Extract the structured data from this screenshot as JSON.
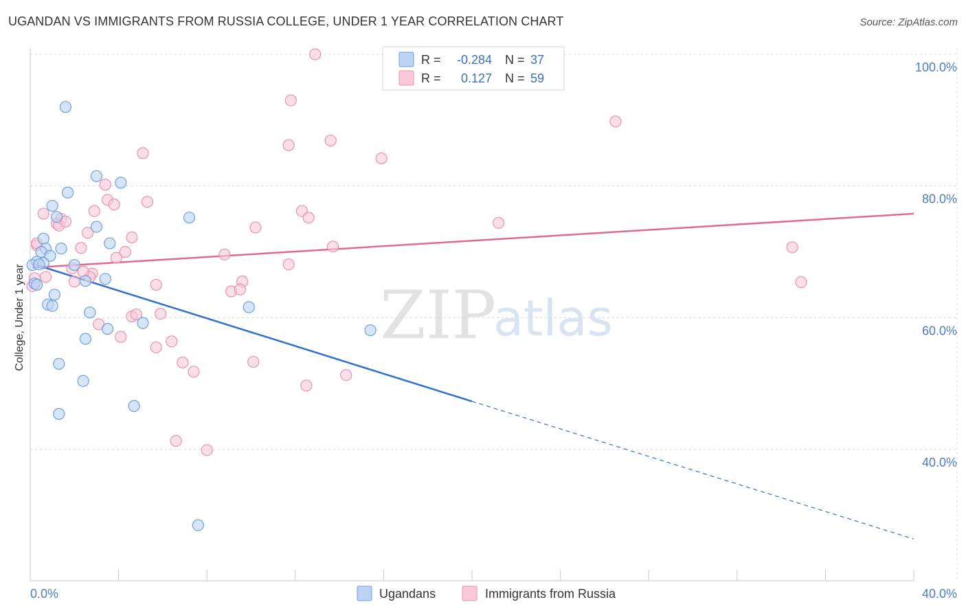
{
  "header": {
    "title": "UGANDAN VS IMMIGRANTS FROM RUSSIA COLLEGE, UNDER 1 YEAR CORRELATION CHART",
    "source": "Source: ZipAtlas.com"
  },
  "watermark": {
    "part1": "ZIP",
    "part2": "atlas"
  },
  "legend": {
    "rows": [
      {
        "r_label": "R =",
        "r_value": "-0.284",
        "n_label": "N =",
        "n_value": "37"
      },
      {
        "r_label": "R =",
        "r_value": "0.127",
        "n_label": "N =",
        "n_value": "59"
      }
    ]
  },
  "bottom_legend": [
    "Ugandans",
    "Immigrants from Russia"
  ],
  "chart_data": {
    "type": "scatter",
    "title": "UGANDAN VS IMMIGRANTS FROM RUSSIA COLLEGE, UNDER 1 YEAR CORRELATION CHART",
    "xlabel": "",
    "ylabel": "College, Under 1 year",
    "xlim": [
      0,
      40
    ],
    "ylim": [
      20,
      102
    ],
    "x_tick_labels": [
      "0.0%",
      "40.0%"
    ],
    "y_ticks": [
      40,
      60,
      80,
      100
    ],
    "y_tick_labels": [
      "40.0%",
      "60.0%",
      "80.0%",
      "100.0%"
    ],
    "colors": {
      "ugandans_fill": "#bcd3f3",
      "ugandans_stroke": "#6e9fdc",
      "ugandans_line": "#2f6fce",
      "russia_fill": "#f9c9d8",
      "russia_stroke": "#e892ae",
      "russia_line": "#e0698f",
      "grid": "#d8d8d8",
      "tick_text": "#4a7cc9"
    },
    "series": [
      {
        "name": "Ugandans",
        "R": -0.284,
        "N": 37,
        "trend": {
          "x0": 0.1,
          "y0": 68.2,
          "x1": 20.0,
          "y1": 47.3,
          "dash_to_x": 40.0,
          "dash_to_y": 26.4
        },
        "points": [
          [
            1.6,
            92.0
          ],
          [
            3.0,
            81.5
          ],
          [
            4.1,
            80.5
          ],
          [
            1.7,
            79.0
          ],
          [
            1.0,
            77.0
          ],
          [
            7.2,
            75.2
          ],
          [
            1.2,
            75.3
          ],
          [
            3.0,
            73.8
          ],
          [
            0.6,
            72.0
          ],
          [
            3.6,
            71.3
          ],
          [
            0.7,
            70.5
          ],
          [
            1.4,
            70.5
          ],
          [
            0.5,
            70.0
          ],
          [
            0.9,
            69.4
          ],
          [
            0.3,
            68.5
          ],
          [
            0.1,
            68.0
          ],
          [
            0.6,
            68.3
          ],
          [
            2.0,
            68.0
          ],
          [
            2.5,
            65.6
          ],
          [
            3.4,
            65.9
          ],
          [
            0.2,
            65.2
          ],
          [
            0.3,
            65.0
          ],
          [
            1.1,
            63.5
          ],
          [
            0.8,
            62.0
          ],
          [
            1.0,
            61.8
          ],
          [
            9.9,
            61.6
          ],
          [
            2.7,
            60.8
          ],
          [
            5.1,
            59.2
          ],
          [
            3.5,
            58.3
          ],
          [
            15.4,
            58.1
          ],
          [
            2.5,
            56.8
          ],
          [
            1.3,
            53.0
          ],
          [
            2.4,
            50.4
          ],
          [
            4.7,
            46.6
          ],
          [
            1.3,
            45.4
          ],
          [
            7.6,
            28.5
          ],
          [
            0.4,
            68.1
          ]
        ]
      },
      {
        "name": "Immigrants from Russia",
        "R": 0.127,
        "N": 59,
        "trend": {
          "x0": 0.1,
          "y0": 67.6,
          "x1": 40.0,
          "y1": 75.8
        },
        "points": [
          [
            12.9,
            100.0
          ],
          [
            11.8,
            93.0
          ],
          [
            26.5,
            89.8
          ],
          [
            13.6,
            86.9
          ],
          [
            11.7,
            86.2
          ],
          [
            5.1,
            85.0
          ],
          [
            15.9,
            84.2
          ],
          [
            3.4,
            80.2
          ],
          [
            3.5,
            77.9
          ],
          [
            5.3,
            77.6
          ],
          [
            2.9,
            76.2
          ],
          [
            3.8,
            77.2
          ],
          [
            0.6,
            75.8
          ],
          [
            12.3,
            76.2
          ],
          [
            12.6,
            75.2
          ],
          [
            1.4,
            75.0
          ],
          [
            1.2,
            74.3
          ],
          [
            1.3,
            74.0
          ],
          [
            21.2,
            74.4
          ],
          [
            10.2,
            73.7
          ],
          [
            2.6,
            72.9
          ],
          [
            4.6,
            72.2
          ],
          [
            0.3,
            71.0
          ],
          [
            13.7,
            70.8
          ],
          [
            34.5,
            70.7
          ],
          [
            2.3,
            70.6
          ],
          [
            4.3,
            70.0
          ],
          [
            8.8,
            69.6
          ],
          [
            3.9,
            69.1
          ],
          [
            11.7,
            68.1
          ],
          [
            1.9,
            67.5
          ],
          [
            2.8,
            66.7
          ],
          [
            2.7,
            66.2
          ],
          [
            0.7,
            66.2
          ],
          [
            2.0,
            65.5
          ],
          [
            9.6,
            65.5
          ],
          [
            5.7,
            65.0
          ],
          [
            34.9,
            65.4
          ],
          [
            0.1,
            64.8
          ],
          [
            9.1,
            64.0
          ],
          [
            9.5,
            64.3
          ],
          [
            4.6,
            60.2
          ],
          [
            4.8,
            60.5
          ],
          [
            5.9,
            60.6
          ],
          [
            3.1,
            59.0
          ],
          [
            4.1,
            57.1
          ],
          [
            6.4,
            56.4
          ],
          [
            5.7,
            55.5
          ],
          [
            10.1,
            53.3
          ],
          [
            6.9,
            53.2
          ],
          [
            7.4,
            51.8
          ],
          [
            14.3,
            51.3
          ],
          [
            12.5,
            49.7
          ],
          [
            6.6,
            41.3
          ],
          [
            8.0,
            39.9
          ],
          [
            0.3,
            71.3
          ],
          [
            1.6,
            74.6
          ],
          [
            0.2,
            66.0
          ],
          [
            2.4,
            67.0
          ]
        ]
      }
    ]
  }
}
